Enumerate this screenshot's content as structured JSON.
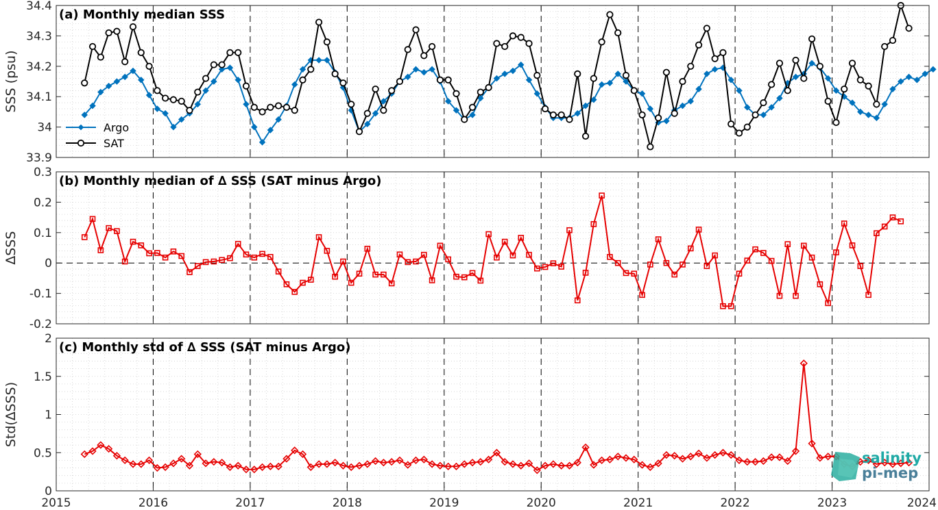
{
  "logo": {
    "line1": "salinity",
    "line2": "pi-mep",
    "color1": "#1fa9a5",
    "color2": "#4a7f99"
  },
  "chart_data": [
    {
      "type": "line",
      "title": "(a) Monthly median SSS",
      "ylabel": "SSS (psu)",
      "xlim": [
        2015,
        2024
      ],
      "ylim": [
        33.9,
        34.4
      ],
      "yticks": [
        "33.9",
        "34",
        "34.1",
        "34.2",
        "34.3",
        "34.4"
      ],
      "grid": true,
      "year_lines": "dashed",
      "legend": {
        "placement": "bottom-left",
        "entries": [
          "Argo",
          "SAT"
        ]
      },
      "x_start": "2015-04",
      "x_step": "1 month",
      "series": [
        {
          "name": "Argo",
          "color": "#0072bd",
          "marker": "diamond",
          "values": [
            34.04,
            34.07,
            34.115,
            34.135,
            34.15,
            34.165,
            34.185,
            34.155,
            34.105,
            34.06,
            34.045,
            34.0,
            34.025,
            34.045,
            34.075,
            34.12,
            34.15,
            34.19,
            34.195,
            34.155,
            34.075,
            34.0,
            33.95,
            33.99,
            34.025,
            34.07,
            34.14,
            34.19,
            34.22,
            34.22,
            34.22,
            34.18,
            34.13,
            34.055,
            33.985,
            34.01,
            34.045,
            34.085,
            34.11,
            34.15,
            34.165,
            34.19,
            34.18,
            34.19,
            34.15,
            34.085,
            34.055,
            34.025,
            34.04,
            34.095,
            34.13,
            34.16,
            34.175,
            34.185,
            34.205,
            34.155,
            34.11,
            34.065,
            34.03,
            34.03,
            34.03,
            34.045,
            34.07,
            34.09,
            34.14,
            34.145,
            34.175,
            34.15,
            34.12,
            34.11,
            34.06,
            34.015,
            34.02,
            34.055,
            34.07,
            34.085,
            34.125,
            34.175,
            34.19,
            34.195,
            34.155,
            34.12,
            34.065,
            34.04,
            34.04,
            34.065,
            34.095,
            34.145,
            34.165,
            34.175,
            34.21,
            34.195,
            34.16,
            34.12,
            34.1,
            34.08,
            34.05,
            34.04,
            34.03,
            34.075,
            34.125,
            34.15,
            34.165,
            34.155,
            34.175,
            34.19
          ]
        },
        {
          "name": "SAT",
          "color": "#000000",
          "marker": "circle",
          "values": [
            34.145,
            34.265,
            34.23,
            34.31,
            34.315,
            34.215,
            34.33,
            34.245,
            34.2,
            34.12,
            34.095,
            34.09,
            34.085,
            34.055,
            34.115,
            34.16,
            34.205,
            34.205,
            34.245,
            34.245,
            34.135,
            34.065,
            34.05,
            34.065,
            34.07,
            34.065,
            34.055,
            34.155,
            34.19,
            34.345,
            34.28,
            34.175,
            34.145,
            34.075,
            33.985,
            34.045,
            34.125,
            34.055,
            34.12,
            34.15,
            34.255,
            34.32,
            34.235,
            34.265,
            34.155,
            34.155,
            34.11,
            34.025,
            34.065,
            34.115,
            34.13,
            34.275,
            34.265,
            34.3,
            34.295,
            34.275,
            34.17,
            34.06,
            34.04,
            34.04,
            34.025,
            34.175,
            33.97,
            34.16,
            34.28,
            34.37,
            34.31,
            34.17,
            34.12,
            34.04,
            33.935,
            34.03,
            34.18,
            34.045,
            34.15,
            34.2,
            34.27,
            34.325,
            34.225,
            34.245,
            34.01,
            33.98,
            34.0,
            34.04,
            34.08,
            34.14,
            34.21,
            34.12,
            34.22,
            34.16,
            34.29,
            34.2,
            34.085,
            34.015,
            34.125,
            34.21,
            34.155,
            34.135,
            34.075,
            34.265,
            34.285,
            34.4,
            34.325
          ]
        }
      ]
    },
    {
      "type": "line",
      "title": "(b) Monthly median of ∆ SSS (SAT minus Argo)",
      "ylabel": "∆SSS",
      "xlim": [
        2015,
        2024
      ],
      "ylim": [
        -0.2,
        0.3
      ],
      "yticks": [
        "-0.2",
        "-0.1",
        "0",
        "0.1",
        "0.2",
        "0.3"
      ],
      "grid": true,
      "zero_line": "dashed",
      "x_start": "2015-04",
      "x_step": "1 month",
      "series": [
        {
          "name": "",
          "color": "#e60000",
          "marker": "square",
          "values": [
            0.085,
            0.145,
            0.042,
            0.115,
            0.105,
            0.005,
            0.07,
            0.058,
            0.032,
            0.033,
            0.018,
            0.038,
            0.023,
            -0.03,
            -0.01,
            0.003,
            0.005,
            0.01,
            0.016,
            0.063,
            0.028,
            0.018,
            0.03,
            0.02,
            -0.028,
            -0.07,
            -0.095,
            -0.065,
            -0.055,
            0.085,
            0.04,
            -0.045,
            0.005,
            -0.065,
            -0.035,
            0.047,
            -0.038,
            -0.038,
            -0.067,
            0.028,
            0.003,
            0.005,
            0.027,
            -0.057,
            0.057,
            0.012,
            -0.045,
            -0.047,
            -0.033,
            -0.058,
            0.095,
            0.018,
            0.07,
            0.025,
            0.083,
            0.027,
            -0.018,
            -0.013,
            -0.001,
            -0.012,
            0.108,
            -0.123,
            -0.032,
            0.128,
            0.222,
            0.02,
            0.0,
            -0.033,
            -0.035,
            -0.105,
            -0.005,
            0.078,
            0.0,
            -0.038,
            -0.005,
            0.048,
            0.11,
            -0.01,
            0.025,
            -0.142,
            -0.142,
            -0.035,
            0.008,
            0.045,
            0.033,
            0.007,
            -0.108,
            0.062,
            -0.108,
            0.057,
            0.018,
            -0.07,
            -0.132,
            0.035,
            0.13,
            0.058,
            -0.01,
            -0.105,
            0.098,
            0.12,
            0.15,
            0.137
          ]
        }
      ]
    },
    {
      "type": "line",
      "title": "(c) Monthly std of ∆ SSS (SAT minus Argo)",
      "ylabel": "Std(∆SSS)",
      "xlim": [
        2015,
        2024
      ],
      "ylim": [
        0,
        2
      ],
      "yticks": [
        "0",
        "0.5",
        "1",
        "1.5",
        "2"
      ],
      "xticks": [
        "2015",
        "2016",
        "2017",
        "2018",
        "2019",
        "2020",
        "2021",
        "2022",
        "2023",
        "2024"
      ],
      "grid": true,
      "x_start": "2015-04",
      "x_step": "1 month",
      "series": [
        {
          "name": "",
          "color": "#e60000",
          "marker": "diamond",
          "values": [
            0.48,
            0.52,
            0.6,
            0.55,
            0.46,
            0.4,
            0.35,
            0.35,
            0.4,
            0.3,
            0.31,
            0.36,
            0.42,
            0.33,
            0.48,
            0.36,
            0.38,
            0.37,
            0.31,
            0.33,
            0.28,
            0.28,
            0.31,
            0.32,
            0.32,
            0.42,
            0.53,
            0.48,
            0.31,
            0.35,
            0.35,
            0.37,
            0.33,
            0.31,
            0.33,
            0.35,
            0.39,
            0.37,
            0.38,
            0.4,
            0.34,
            0.4,
            0.41,
            0.35,
            0.33,
            0.32,
            0.32,
            0.35,
            0.37,
            0.38,
            0.41,
            0.5,
            0.38,
            0.35,
            0.33,
            0.36,
            0.27,
            0.33,
            0.35,
            0.33,
            0.33,
            0.37,
            0.57,
            0.34,
            0.4,
            0.41,
            0.45,
            0.43,
            0.41,
            0.34,
            0.31,
            0.36,
            0.47,
            0.46,
            0.42,
            0.45,
            0.49,
            0.43,
            0.47,
            0.5,
            0.47,
            0.4,
            0.38,
            0.38,
            0.39,
            0.44,
            0.44,
            0.39,
            0.52,
            1.67,
            0.62,
            0.43,
            0.45,
            0.45,
            0.35,
            0.32,
            0.38,
            0.4,
            0.35,
            0.37,
            0.35,
            0.36,
            0.37
          ]
        }
      ]
    }
  ]
}
